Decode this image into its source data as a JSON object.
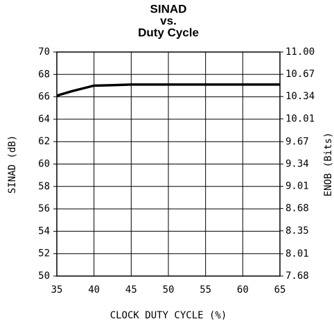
{
  "chart_data": {
    "type": "line",
    "title": [
      "SINAD",
      "vs.",
      "Duty Cycle"
    ],
    "x_label": "CLOCK DUTY CYCLE (%)",
    "y_label": "SINAD (dB)",
    "y2_label": "ENOB (Bits)",
    "x": [
      35,
      37,
      40,
      43,
      45,
      50,
      55,
      60,
      65
    ],
    "values": [
      66.1,
      66.5,
      67.0,
      67.05,
      67.1,
      67.1,
      67.1,
      67.1,
      67.1
    ],
    "color": "#000000",
    "xlim": [
      35,
      65
    ],
    "xticks": [
      35,
      40,
      45,
      50,
      55,
      60,
      65
    ],
    "ylim": [
      50,
      70
    ],
    "yticks": [
      50,
      52,
      54,
      56,
      58,
      60,
      62,
      64,
      66,
      68,
      70
    ],
    "y2lim": [
      7.68,
      11
    ],
    "y2ticks": [
      7.68,
      8.01,
      8.35,
      8.68,
      9.01,
      9.34,
      9.67,
      10.01,
      10.34,
      10.67,
      {
        "value": 11,
        "label": "11.00"
      }
    ],
    "grid": true
  }
}
